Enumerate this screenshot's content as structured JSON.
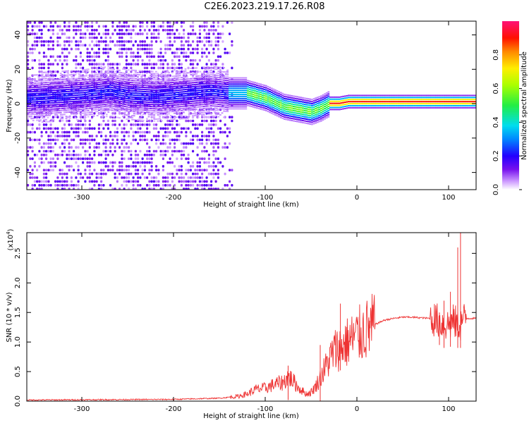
{
  "title": "C2E6.2023.219.17.26.R08",
  "chart_data": [
    {
      "type": "heatmap",
      "title": "C2E6.2023.219.17.26.R08",
      "xlabel": "Height of straight line (km)",
      "ylabel": "Frequency (Hz)",
      "xlim": [
        -360,
        130
      ],
      "ylim": [
        -50,
        48
      ],
      "xticks": [
        -300,
        -200,
        -100,
        0,
        100
      ],
      "yticks": [
        -40,
        -20,
        0,
        20,
        40
      ],
      "ridge": {
        "x": [
          -360,
          -300,
          -270,
          -250,
          -220,
          -200,
          -160,
          -140,
          -120,
          -100,
          -80,
          -60,
          -50,
          -40,
          -30,
          -20,
          -10,
          0,
          20,
          50,
          80,
          100,
          130
        ],
        "freq": [
          3,
          5,
          7,
          5,
          4,
          5,
          7,
          6,
          6,
          3,
          -2,
          -4,
          -5,
          -3,
          0,
          0,
          1,
          1,
          1,
          1,
          1,
          1,
          1
        ]
      },
      "colorbar": {
        "label": "Normalized spectral amplitude",
        "ticks": [
          0.0,
          0.2,
          0.4,
          0.6,
          0.8
        ],
        "tick_labels": [
          "0.0",
          "0.2",
          "0.4",
          "0.6",
          "0.8"
        ],
        "range": [
          0,
          1
        ]
      }
    },
    {
      "type": "line",
      "xlabel": "Height of straight line (km)",
      "ylabel": "SNR (10 * v/v)",
      "scale_label": "(x10",
      "scale_exp": "4",
      "scale_close": ")",
      "xlim": [
        -360,
        130
      ],
      "ylim": [
        0,
        2.85
      ],
      "xticks": [
        -300,
        -200,
        -100,
        0,
        100
      ],
      "yticks": [
        0.0,
        0.5,
        1.0,
        1.5,
        2.0,
        2.5
      ],
      "ytick_labels": [
        "0.0",
        "0.5",
        "1.0",
        "1.5",
        "2.0",
        "2.5"
      ],
      "series": [
        {
          "color": "#ee3333",
          "x": [
            -360,
            -200,
            -150,
            -130,
            -120,
            -110,
            -100,
            -90,
            -80,
            -75,
            -70,
            -65,
            -60,
            -55,
            -50,
            -45,
            -40,
            -35,
            -30,
            -25,
            -20,
            -15,
            -10,
            -5,
            0,
            5,
            10,
            20,
            30,
            40,
            50,
            60,
            70,
            80,
            85,
            90,
            95,
            100,
            105,
            110,
            113,
            115,
            120,
            130
          ],
          "y": [
            0.02,
            0.03,
            0.05,
            0.08,
            0.12,
            0.2,
            0.22,
            0.28,
            0.32,
            0.42,
            0.35,
            0.25,
            0.18,
            0.12,
            0.15,
            0.25,
            0.4,
            0.55,
            0.7,
            0.85,
            0.9,
            0.95,
            1.0,
            1.05,
            1.1,
            1.15,
            1.2,
            1.3,
            1.37,
            1.4,
            1.42,
            1.42,
            1.41,
            1.4,
            1.38,
            1.35,
            1.3,
            1.3,
            1.35,
            1.3,
            1.3,
            1.38,
            1.4,
            1.4
          ],
          "spikes": [
            {
              "x": -18,
              "y": 1.65
            },
            {
              "x": -40,
              "y": 0.95
            },
            {
              "x": -75,
              "y": 0.6
            },
            {
              "x": 95,
              "y": 1.7
            },
            {
              "x": 90,
              "y": 1.5
            },
            {
              "x": 102,
              "y": 1.85
            },
            {
              "x": 113,
              "y": 2.85
            },
            {
              "x": 110,
              "y": 2.6
            }
          ]
        }
      ]
    }
  ]
}
